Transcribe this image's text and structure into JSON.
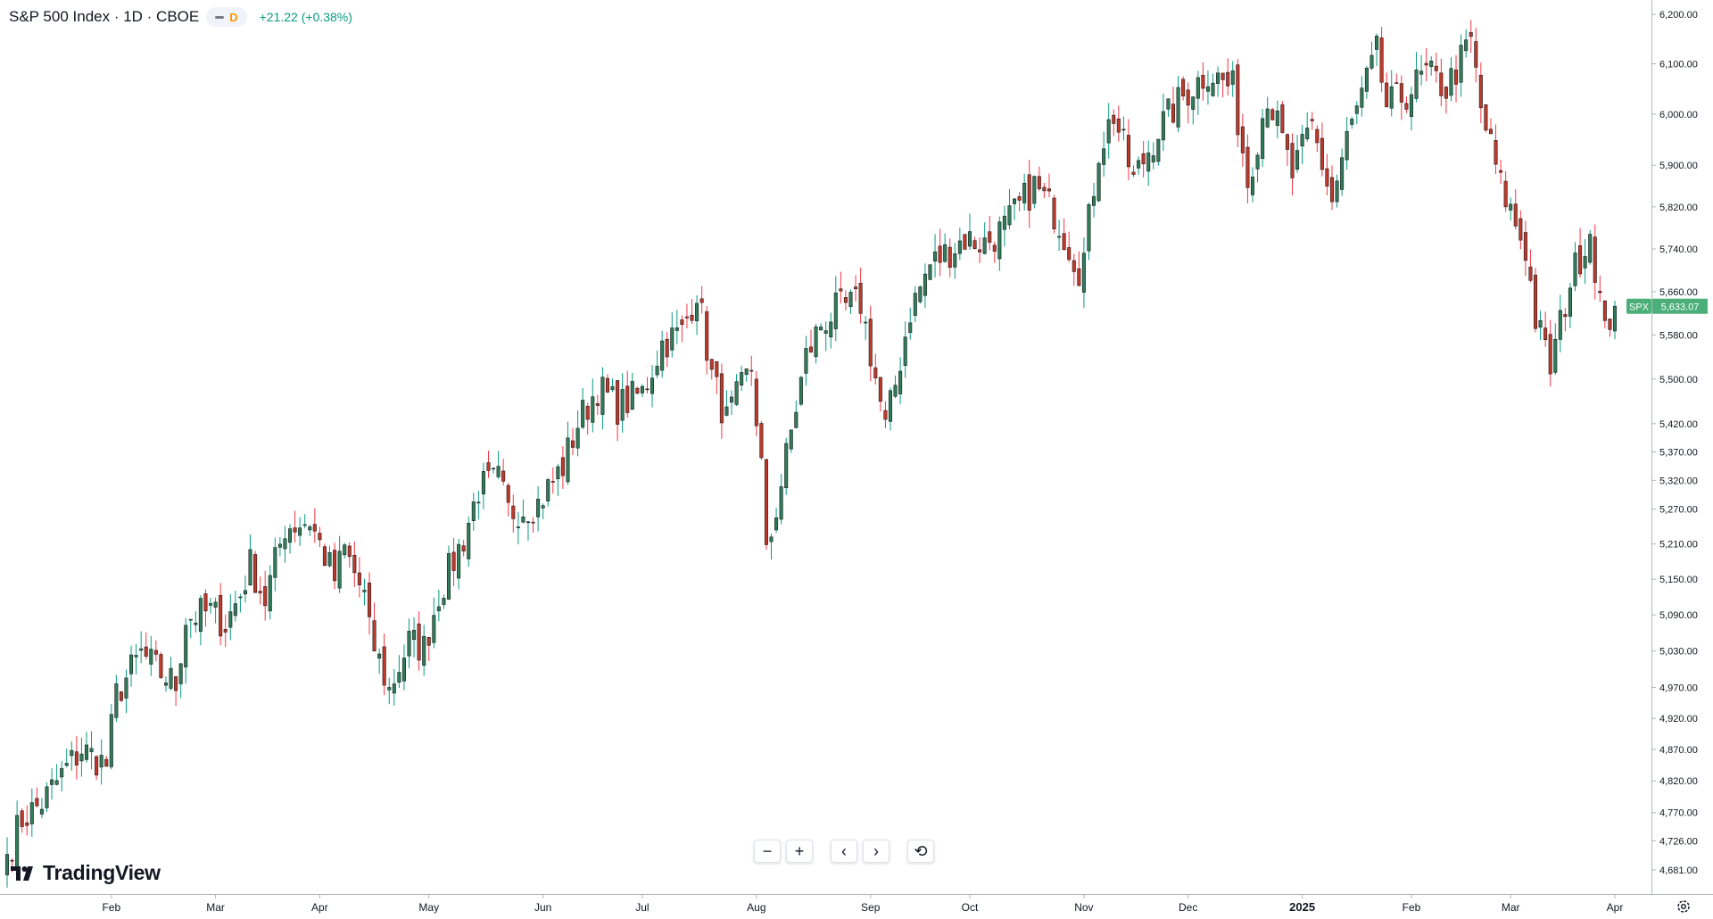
{
  "header": {
    "title": "S&P 500 Index · 1D · CBOE",
    "interval_badge": "D",
    "change": "+21.22 (+0.38%)"
  },
  "brand": {
    "name": "TradingView"
  },
  "colors": {
    "up": "#089981",
    "down": "#f23645",
    "up_fill": "#2e7d5b",
    "down_fill": "#c0392b",
    "price_tag": "#4caf7a"
  },
  "controls": {
    "zoom_out": "−",
    "zoom_in": "+",
    "scroll_left": "‹",
    "scroll_right": "›",
    "reset": "⟲"
  },
  "chart_data": {
    "type": "candlestick",
    "symbol": "SPX",
    "last_price": 5633.07,
    "last_price_label": "5,633.07",
    "scale": "log",
    "ylim": [
      4640,
      6230
    ],
    "y_ticks": [
      {
        "value": 4681,
        "label": "4,681.00"
      },
      {
        "value": 4726,
        "label": "4,726.00"
      },
      {
        "value": 4770,
        "label": "4,770.00"
      },
      {
        "value": 4820,
        "label": "4,820.00"
      },
      {
        "value": 4870,
        "label": "4,870.00"
      },
      {
        "value": 4920,
        "label": "4,920.00"
      },
      {
        "value": 4970,
        "label": "4,970.00"
      },
      {
        "value": 5030,
        "label": "5,030.00"
      },
      {
        "value": 5090,
        "label": "5,090.00"
      },
      {
        "value": 5150,
        "label": "5,150.00"
      },
      {
        "value": 5210,
        "label": "5,210.00"
      },
      {
        "value": 5270,
        "label": "5,270.00"
      },
      {
        "value": 5320,
        "label": "5,320.00"
      },
      {
        "value": 5370,
        "label": "5,370.00"
      },
      {
        "value": 5420,
        "label": "5,420.00"
      },
      {
        "value": 5500,
        "label": "5,500.00"
      },
      {
        "value": 5580,
        "label": "5,580.00"
      },
      {
        "value": 5660,
        "label": "5,660.00"
      },
      {
        "value": 5740,
        "label": "5,740.00"
      },
      {
        "value": 5820,
        "label": "5,820.00"
      },
      {
        "value": 5900,
        "label": "5,900.00"
      },
      {
        "value": 6000,
        "label": "6,000.00"
      },
      {
        "value": 6100,
        "label": "6,100.00"
      },
      {
        "value": 6200,
        "label": "6,200.00"
      }
    ],
    "x_labels": [
      {
        "date": "2024-02-01",
        "label": "Feb"
      },
      {
        "date": "2024-03-01",
        "label": "Mar"
      },
      {
        "date": "2024-04-01",
        "label": "Apr"
      },
      {
        "date": "2024-05-01",
        "label": "May"
      },
      {
        "date": "2024-06-03",
        "label": "Jun"
      },
      {
        "date": "2024-07-01",
        "label": "Jul"
      },
      {
        "date": "2024-08-01",
        "label": "Aug"
      },
      {
        "date": "2024-09-03",
        "label": "Sep"
      },
      {
        "date": "2024-10-01",
        "label": "Oct"
      },
      {
        "date": "2024-11-01",
        "label": "Nov"
      },
      {
        "date": "2024-12-02",
        "label": "Dec"
      },
      {
        "date": "2025-01-02",
        "label": "2025"
      },
      {
        "date": "2025-02-03",
        "label": "Feb"
      },
      {
        "date": "2025-03-03",
        "label": "Mar"
      },
      {
        "date": "2025-04-01",
        "label": "Apr"
      }
    ],
    "first_date": "2024-01-03",
    "last_date": "2025-04-01",
    "close_path": [
      [
        "2024-01-03",
        4705
      ],
      [
        "2024-01-08",
        4760
      ],
      [
        "2024-01-12",
        4785
      ],
      [
        "2024-01-19",
        4840
      ],
      [
        "2024-01-24",
        4870
      ],
      [
        "2024-01-31",
        4845
      ],
      [
        "2024-02-02",
        4958
      ],
      [
        "2024-02-09",
        5025
      ],
      [
        "2024-02-14",
        5000
      ],
      [
        "2024-02-20",
        4975
      ],
      [
        "2024-02-22",
        5085
      ],
      [
        "2024-02-29",
        5095
      ],
      [
        "2024-03-05",
        5075
      ],
      [
        "2024-03-08",
        5125
      ],
      [
        "2024-03-12",
        5175
      ],
      [
        "2024-03-15",
        5115
      ],
      [
        "2024-03-21",
        5240
      ],
      [
        "2024-03-28",
        5250
      ],
      [
        "2024-04-04",
        5150
      ],
      [
        "2024-04-08",
        5200
      ],
      [
        "2024-04-12",
        5120
      ],
      [
        "2024-04-15",
        5060
      ],
      [
        "2024-04-19",
        4965
      ],
      [
        "2024-04-25",
        5045
      ],
      [
        "2024-04-30",
        5035
      ],
      [
        "2024-05-03",
        5125
      ],
      [
        "2024-05-10",
        5220
      ],
      [
        "2024-05-15",
        5305
      ],
      [
        "2024-05-21",
        5320
      ],
      [
        "2024-05-23",
        5265
      ],
      [
        "2024-05-31",
        5280
      ],
      [
        "2024-06-07",
        5345
      ],
      [
        "2024-06-12",
        5420
      ],
      [
        "2024-06-18",
        5485
      ],
      [
        "2024-06-24",
        5450
      ],
      [
        "2024-07-01",
        5475
      ],
      [
        "2024-07-05",
        5565
      ],
      [
        "2024-07-11",
        5585
      ],
      [
        "2024-07-16",
        5665
      ],
      [
        "2024-07-19",
        5505
      ],
      [
        "2024-07-24",
        5425
      ],
      [
        "2024-07-31",
        5520
      ],
      [
        "2024-08-02",
        5345
      ],
      [
        "2024-08-05",
        5185
      ],
      [
        "2024-08-08",
        5315
      ],
      [
        "2024-08-15",
        5540
      ],
      [
        "2024-08-20",
        5600
      ],
      [
        "2024-08-23",
        5625
      ],
      [
        "2024-08-30",
        5640
      ],
      [
        "2024-09-06",
        5410
      ],
      [
        "2024-09-10",
        5490
      ],
      [
        "2024-09-13",
        5625
      ],
      [
        "2024-09-19",
        5710
      ],
      [
        "2024-09-26",
        5745
      ],
      [
        "2024-09-30",
        5760
      ],
      [
        "2024-10-04",
        5750
      ],
      [
        "2024-10-10",
        5780
      ],
      [
        "2024-10-18",
        5860
      ],
      [
        "2024-10-24",
        5810
      ],
      [
        "2024-10-31",
        5705
      ],
      [
        "2024-11-01",
        5725
      ],
      [
        "2024-11-06",
        5930
      ],
      [
        "2024-11-11",
        6000
      ],
      [
        "2024-11-15",
        5870
      ],
      [
        "2024-11-22",
        5970
      ],
      [
        "2024-11-29",
        6035
      ],
      [
        "2024-12-06",
        6085
      ],
      [
        "2024-12-13",
        6050
      ],
      [
        "2024-12-18",
        5870
      ],
      [
        "2024-12-24",
        6040
      ],
      [
        "2024-12-31",
        5880
      ],
      [
        "2025-01-06",
        5975
      ],
      [
        "2025-01-10",
        5830
      ],
      [
        "2025-01-15",
        5950
      ],
      [
        "2025-01-23",
        6120
      ],
      [
        "2025-01-27",
        6015
      ],
      [
        "2025-01-31",
        6040
      ],
      [
        "2025-02-06",
        6080
      ],
      [
        "2025-02-12",
        6050
      ],
      [
        "2025-02-19",
        6145
      ],
      [
        "2025-02-21",
        6010
      ],
      [
        "2025-02-27",
        5860
      ],
      [
        "2025-03-06",
        5740
      ],
      [
        "2025-03-10",
        5610
      ],
      [
        "2025-03-13",
        5520
      ],
      [
        "2025-03-19",
        5680
      ],
      [
        "2025-03-25",
        5775
      ],
      [
        "2025-03-28",
        5580
      ],
      [
        "2025-03-31",
        5612
      ],
      [
        "2025-04-01",
        5633
      ]
    ]
  }
}
